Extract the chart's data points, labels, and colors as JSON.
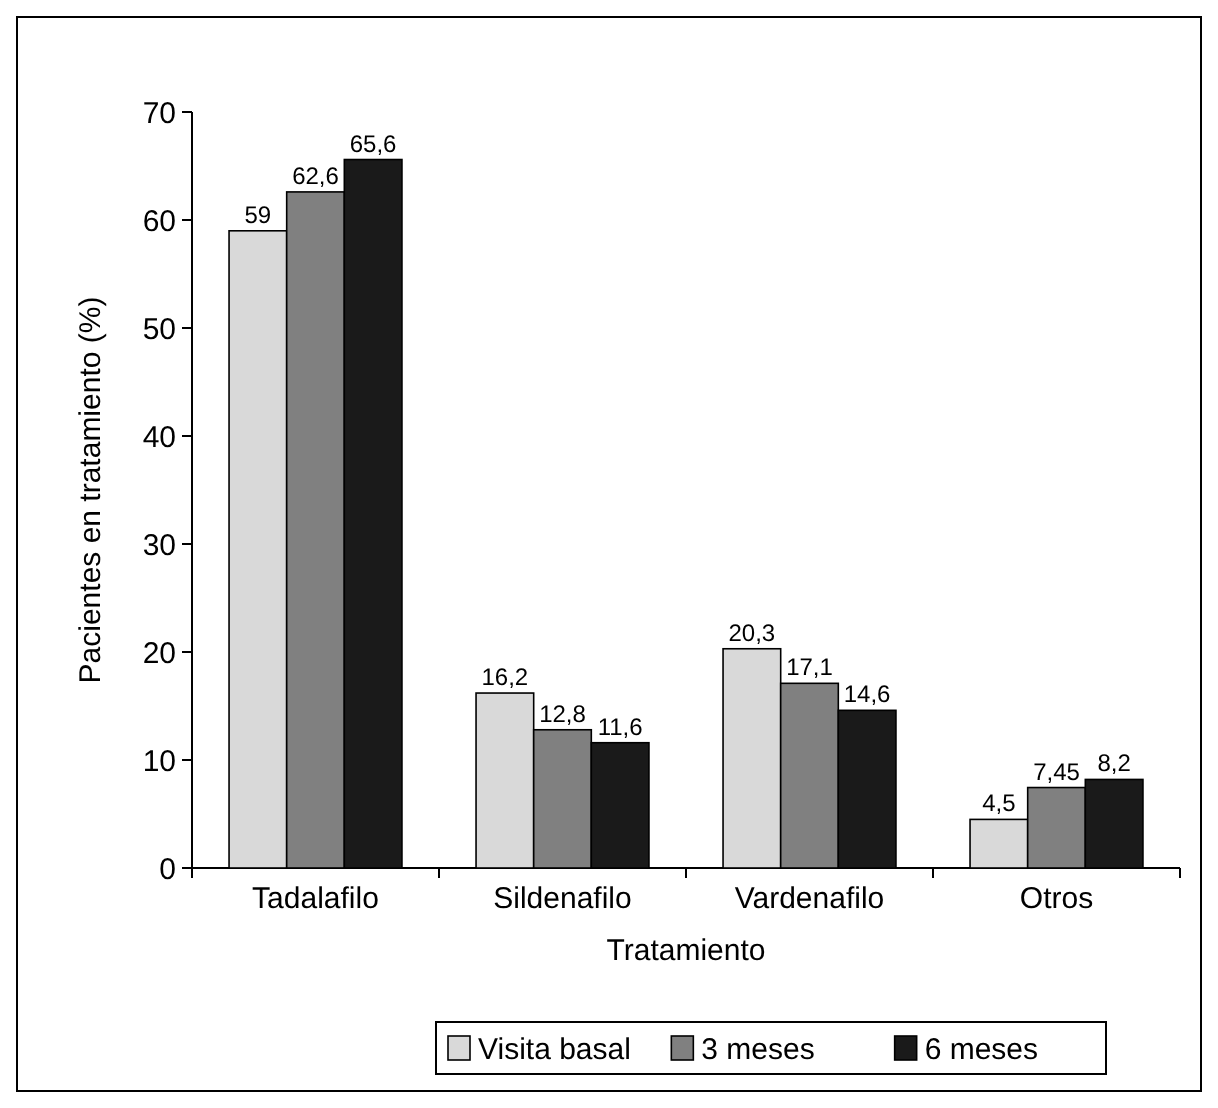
{
  "chart_data": {
    "type": "bar",
    "xlabel": "Tratamiento",
    "ylabel": "Pacientes en tratamiento (%)",
    "categories": [
      "Tadalafilo",
      "Sildenafilo",
      "Vardenafilo",
      "Otros"
    ],
    "series": [
      {
        "name": "Visita basal",
        "color": "#d9d9d9",
        "values": [
          59,
          16.2,
          20.3,
          4.5
        ],
        "value_labels": [
          "59",
          "16,2",
          "20,3",
          "4,5"
        ]
      },
      {
        "name": "3 meses",
        "color": "#808080",
        "values": [
          62.6,
          12.8,
          17.1,
          7.45
        ],
        "value_labels": [
          "62,6",
          "12,8",
          "17,1",
          "7,45"
        ]
      },
      {
        "name": "6 meses",
        "color": "#1a1a1a",
        "values": [
          65.6,
          11.6,
          14.6,
          8.2
        ],
        "value_labels": [
          "65,6",
          "11,6",
          "14,6",
          "8,2"
        ]
      }
    ],
    "ylim": [
      0,
      70
    ],
    "yticks": [
      0,
      10,
      20,
      30,
      40,
      50,
      60,
      70
    ],
    "grid": false,
    "legend": "bottom"
  }
}
